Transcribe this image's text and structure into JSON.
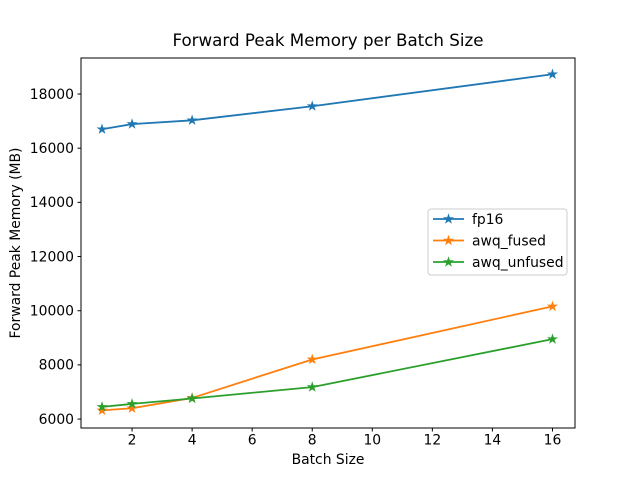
{
  "chart_data": {
    "type": "line",
    "title": "Forward Peak Memory per Batch Size",
    "xlabel": "Batch Size",
    "ylabel": "Forward Peak Memory (MB)",
    "x": [
      1,
      2,
      4,
      8,
      16
    ],
    "series": [
      {
        "name": "fp16",
        "color": "#1f77b4",
        "values": [
          16700,
          16890,
          17030,
          17550,
          18730
        ]
      },
      {
        "name": "awq_fused",
        "color": "#ff7f0e",
        "values": [
          6320,
          6400,
          6780,
          8200,
          10160
        ]
      },
      {
        "name": "awq_unfused",
        "color": "#2ca02c",
        "values": [
          6450,
          6560,
          6760,
          7180,
          8950
        ]
      }
    ],
    "marker": "star",
    "xticks": [
      2,
      4,
      6,
      8,
      10,
      12,
      14,
      16
    ],
    "yticks": [
      6000,
      8000,
      10000,
      12000,
      14000,
      16000,
      18000
    ],
    "xlim": [
      0.3,
      16.75
    ],
    "ylim": [
      5670,
      19330
    ],
    "grid": false,
    "legend": {
      "position": "center right",
      "entries": [
        "fp16",
        "awq_fused",
        "awq_unfused"
      ]
    },
    "colors": {
      "spine": "#000000",
      "background": "#ffffff",
      "legend_border": "#cccccc"
    }
  }
}
